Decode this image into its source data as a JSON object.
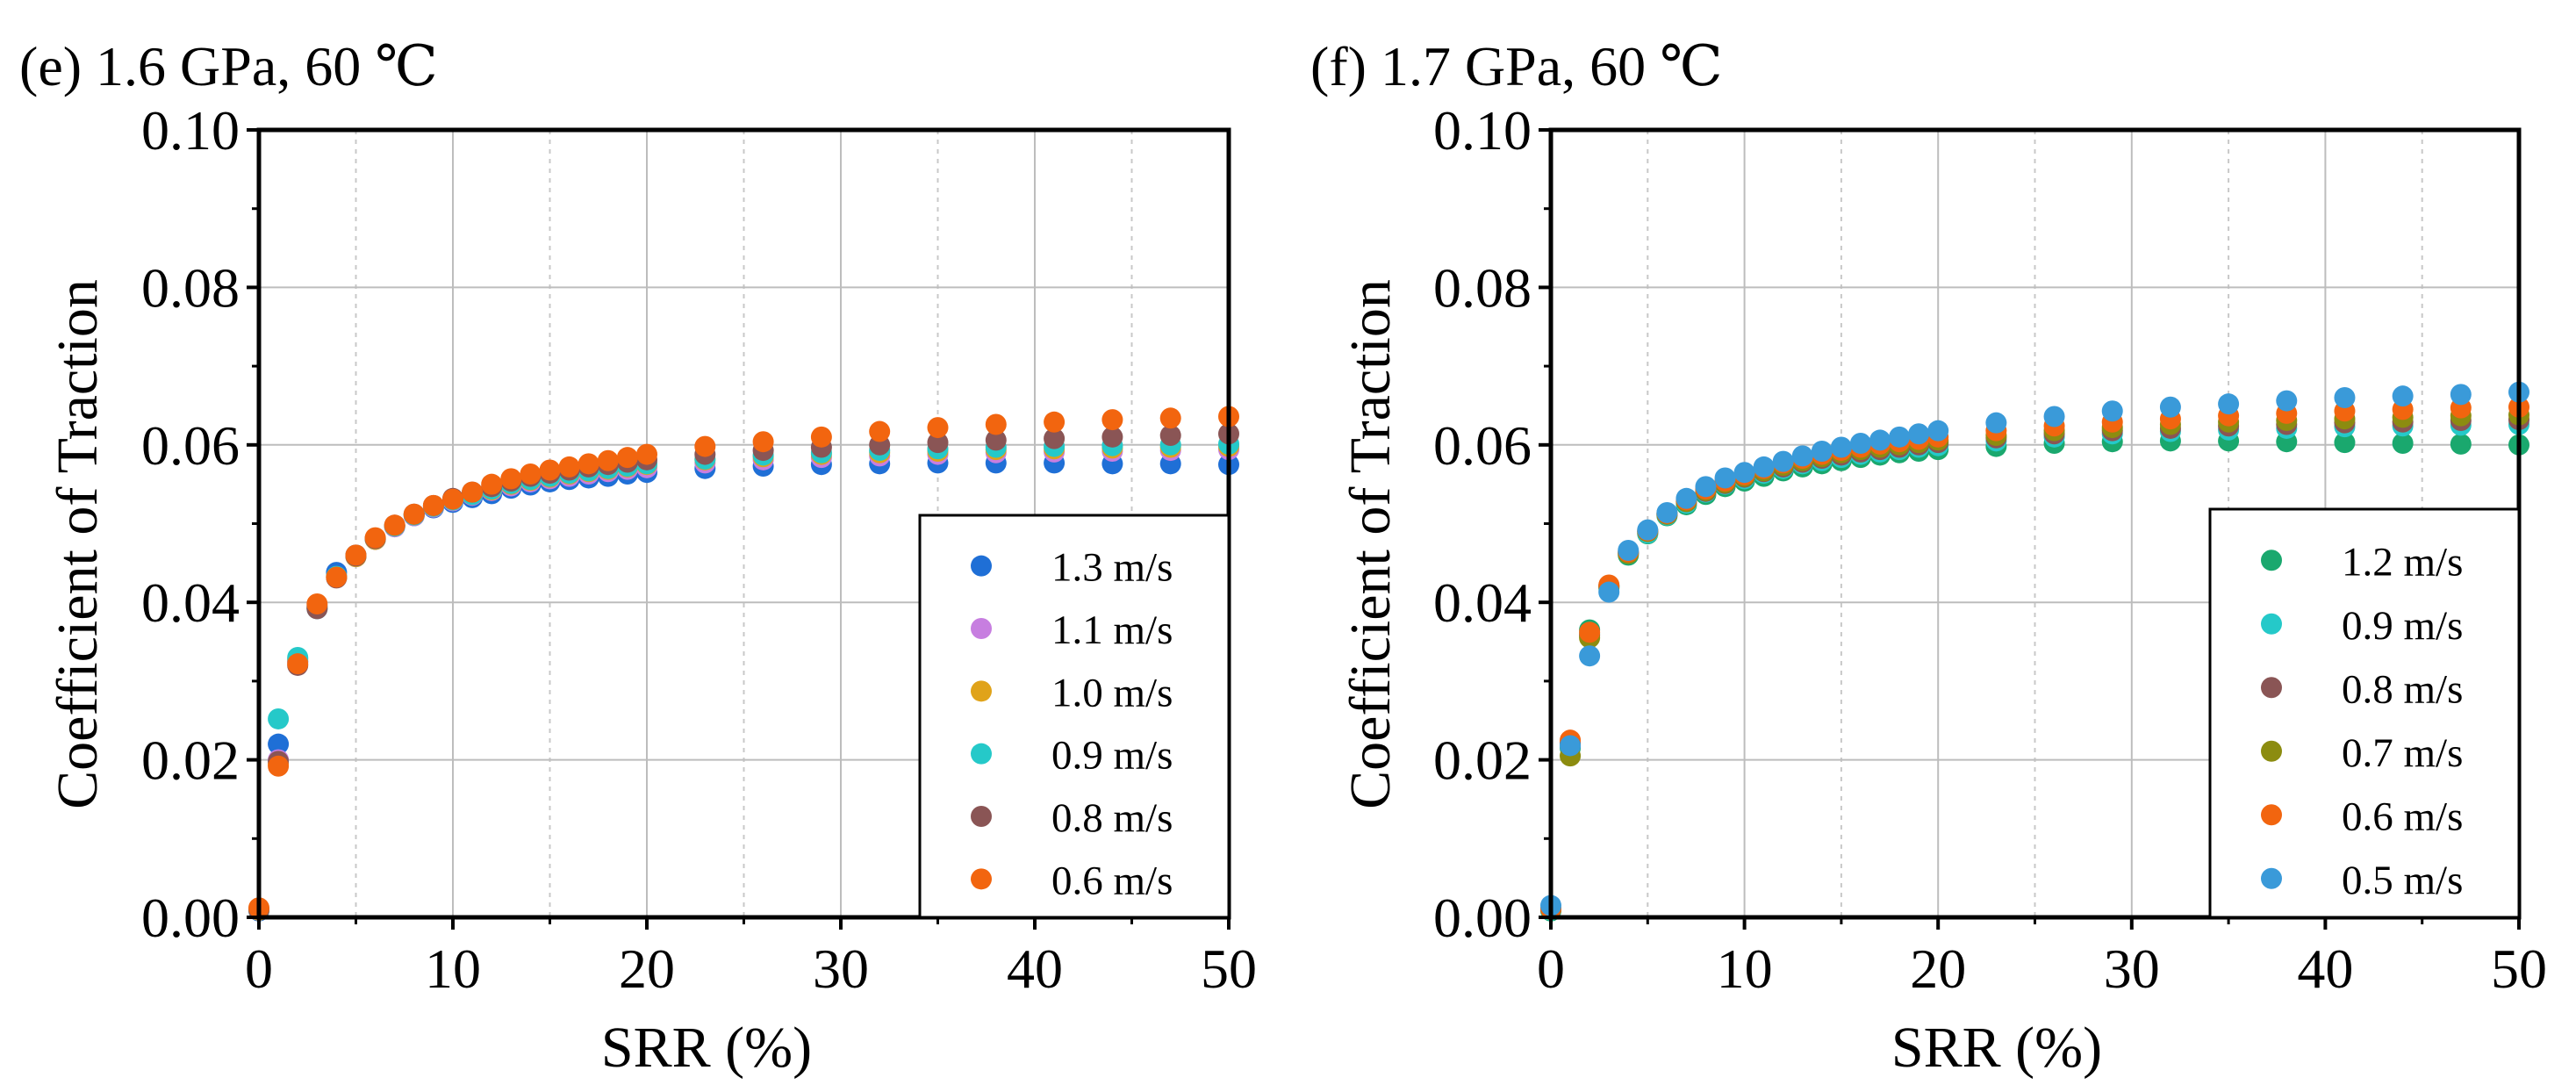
{
  "chart_data": [
    {
      "id": "e",
      "type": "scatter",
      "title": "(e) 1.6 GPa, 60 ℃",
      "xlabel": "SRR (%)",
      "ylabel": "Coefficient of Traction",
      "xlim": [
        0,
        50
      ],
      "ylim": [
        0,
        0.1
      ],
      "xticks": [
        0,
        10,
        20,
        30,
        40,
        50
      ],
      "xtick_labels": [
        "0",
        "10",
        "20",
        "30",
        "40",
        "50"
      ],
      "yticks": [
        0,
        0.02,
        0.04,
        0.06,
        0.08,
        0.1
      ],
      "ytick_labels": [
        "0.00",
        "0.02",
        "0.04",
        "0.06",
        "0.08",
        "0.10"
      ],
      "grid": true,
      "legend_position": "bottom-right",
      "x": [
        0,
        1,
        2,
        3,
        4,
        5,
        6,
        7,
        8,
        9,
        10,
        11,
        12,
        13,
        14,
        15,
        16,
        17,
        18,
        19,
        20,
        23,
        26,
        29,
        32,
        35,
        38,
        41,
        44,
        47,
        50
      ],
      "series": [
        {
          "name": "1.3 m/s",
          "color": "#1f6fd6",
          "values": [
            0.0008,
            0.022,
            0.0325,
            0.0395,
            0.0438,
            0.046,
            0.048,
            0.0496,
            0.051,
            0.052,
            0.0527,
            0.0533,
            0.0538,
            0.0545,
            0.0549,
            0.0553,
            0.0556,
            0.0558,
            0.056,
            0.0563,
            0.0565,
            0.057,
            0.0573,
            0.0575,
            0.0576,
            0.0577,
            0.0577,
            0.0577,
            0.0576,
            0.0576,
            0.0575
          ]
        },
        {
          "name": "1.1 m/s",
          "color": "#c77ee0",
          "values": [
            0.0009,
            0.02,
            0.0325,
            0.0392,
            0.0432,
            0.0458,
            0.048,
            0.0496,
            0.051,
            0.0521,
            0.0529,
            0.0536,
            0.0542,
            0.0548,
            0.0553,
            0.0557,
            0.056,
            0.0563,
            0.0566,
            0.0569,
            0.0571,
            0.0577,
            0.0581,
            0.0584,
            0.0586,
            0.0588,
            0.059,
            0.0591,
            0.0592,
            0.0593,
            0.0594
          ]
        },
        {
          "name": "1.0 m/s",
          "color": "#e0a31a",
          "values": [
            0.0009,
            0.0195,
            0.0328,
            0.0393,
            0.0432,
            0.0458,
            0.048,
            0.0497,
            0.0511,
            0.0522,
            0.053,
            0.0537,
            0.0543,
            0.055,
            0.0555,
            0.0559,
            0.0563,
            0.0566,
            0.0569,
            0.0572,
            0.0575,
            0.0581,
            0.0585,
            0.0588,
            0.059,
            0.0592,
            0.0594,
            0.0595,
            0.0596,
            0.0597,
            0.0598
          ]
        },
        {
          "name": "0.9 m/s",
          "color": "#25c9c9",
          "values": [
            0.001,
            0.0252,
            0.033,
            0.0392,
            0.0433,
            0.0459,
            0.0481,
            0.0497,
            0.0511,
            0.0522,
            0.053,
            0.0537,
            0.0544,
            0.0551,
            0.0556,
            0.056,
            0.0564,
            0.0567,
            0.057,
            0.0573,
            0.0576,
            0.0582,
            0.0587,
            0.059,
            0.0593,
            0.0595,
            0.0597,
            0.0598,
            0.0599,
            0.06,
            0.0601
          ]
        },
        {
          "name": "0.8 m/s",
          "color": "#8a5555",
          "values": [
            0.001,
            0.0198,
            0.032,
            0.0392,
            0.0431,
            0.0459,
            0.0481,
            0.0498,
            0.0512,
            0.0523,
            0.0532,
            0.054,
            0.0547,
            0.0554,
            0.056,
            0.0564,
            0.0568,
            0.0572,
            0.0575,
            0.0578,
            0.0581,
            0.0588,
            0.0593,
            0.0597,
            0.06,
            0.0603,
            0.0606,
            0.0608,
            0.061,
            0.0612,
            0.0614
          ]
        },
        {
          "name": "0.6 m/s",
          "color": "#f2650f",
          "values": [
            0.0012,
            0.0192,
            0.0322,
            0.0398,
            0.0432,
            0.046,
            0.0482,
            0.0498,
            0.0512,
            0.0523,
            0.0531,
            0.054,
            0.055,
            0.0557,
            0.0563,
            0.0568,
            0.0572,
            0.0576,
            0.058,
            0.0584,
            0.0588,
            0.0598,
            0.0604,
            0.061,
            0.0617,
            0.0622,
            0.0626,
            0.0629,
            0.0632,
            0.0634,
            0.0636
          ]
        }
      ]
    },
    {
      "id": "f",
      "type": "scatter",
      "title": "(f) 1.7 GPa, 60 ℃",
      "xlabel": "SRR (%)",
      "ylabel": "Coefficient of Traction",
      "xlim": [
        0,
        50
      ],
      "ylim": [
        0,
        0.1
      ],
      "xticks": [
        0,
        10,
        20,
        30,
        40,
        50
      ],
      "xtick_labels": [
        "0",
        "10",
        "20",
        "30",
        "40",
        "50"
      ],
      "yticks": [
        0,
        0.02,
        0.04,
        0.06,
        0.08,
        0.1
      ],
      "ytick_labels": [
        "0.00",
        "0.02",
        "0.04",
        "0.06",
        "0.08",
        "0.10"
      ],
      "grid": true,
      "legend_position": "bottom-right",
      "x": [
        0,
        1,
        2,
        3,
        4,
        5,
        6,
        7,
        8,
        9,
        10,
        11,
        12,
        13,
        14,
        15,
        16,
        17,
        18,
        19,
        20,
        23,
        26,
        29,
        32,
        35,
        38,
        41,
        44,
        47,
        50
      ],
      "series": [
        {
          "name": "1.2 m/s",
          "color": "#1aa86e",
          "values": [
            0.0008,
            0.0215,
            0.0365,
            0.0418,
            0.046,
            0.0487,
            0.051,
            0.0524,
            0.0537,
            0.0547,
            0.0554,
            0.056,
            0.0567,
            0.0572,
            0.0576,
            0.058,
            0.0584,
            0.0587,
            0.059,
            0.0592,
            0.0594,
            0.0598,
            0.0602,
            0.0604,
            0.0605,
            0.0605,
            0.0604,
            0.0603,
            0.0602,
            0.0601,
            0.06
          ]
        },
        {
          "name": "0.9 m/s",
          "color": "#25c9c9",
          "values": [
            0.0009,
            0.022,
            0.036,
            0.042,
            0.0462,
            0.0488,
            0.0511,
            0.0526,
            0.054,
            0.055,
            0.0557,
            0.0564,
            0.057,
            0.0576,
            0.058,
            0.0584,
            0.0588,
            0.0591,
            0.0594,
            0.0597,
            0.0599,
            0.0605,
            0.061,
            0.0614,
            0.0617,
            0.0619,
            0.0621,
            0.0623,
            0.0624,
            0.0625,
            0.0626
          ]
        },
        {
          "name": "0.8 m/s",
          "color": "#8a5555",
          "values": [
            0.001,
            0.0222,
            0.0358,
            0.0421,
            0.0463,
            0.049,
            0.0512,
            0.0528,
            0.0541,
            0.0551,
            0.0559,
            0.0566,
            0.0572,
            0.0578,
            0.0583,
            0.0587,
            0.0591,
            0.0594,
            0.0597,
            0.06,
            0.0603,
            0.0609,
            0.0614,
            0.0618,
            0.0621,
            0.0624,
            0.0626,
            0.0628,
            0.0629,
            0.0631,
            0.0632
          ]
        },
        {
          "name": "0.7 m/s",
          "color": "#8c8c10",
          "values": [
            0.001,
            0.0205,
            0.0355,
            0.042,
            0.0462,
            0.049,
            0.0512,
            0.0528,
            0.0542,
            0.0552,
            0.056,
            0.0567,
            0.0574,
            0.058,
            0.0585,
            0.059,
            0.0594,
            0.0597,
            0.06,
            0.0603,
            0.0606,
            0.0612,
            0.0618,
            0.0622,
            0.0626,
            0.0629,
            0.0631,
            0.0633,
            0.0635,
            0.0637,
            0.0638
          ]
        },
        {
          "name": "0.6 m/s",
          "color": "#f2650f",
          "values": [
            0.0011,
            0.0225,
            0.0362,
            0.0422,
            0.0464,
            0.0491,
            0.0513,
            0.053,
            0.0544,
            0.0554,
            0.0562,
            0.057,
            0.0577,
            0.0583,
            0.0588,
            0.0593,
            0.0597,
            0.0601,
            0.0604,
            0.0607,
            0.061,
            0.0618,
            0.0624,
            0.0629,
            0.0633,
            0.0637,
            0.064,
            0.0643,
            0.0645,
            0.0647,
            0.0648
          ]
        },
        {
          "name": "0.5 m/s",
          "color": "#3a9ad9",
          "values": [
            0.0015,
            0.0218,
            0.0332,
            0.0413,
            0.0466,
            0.0492,
            0.0514,
            0.0532,
            0.0547,
            0.0558,
            0.0565,
            0.0572,
            0.0579,
            0.0586,
            0.0592,
            0.0597,
            0.0602,
            0.0606,
            0.061,
            0.0614,
            0.0618,
            0.0628,
            0.0636,
            0.0643,
            0.0648,
            0.0652,
            0.0656,
            0.066,
            0.0662,
            0.0664,
            0.0667
          ]
        }
      ]
    }
  ]
}
